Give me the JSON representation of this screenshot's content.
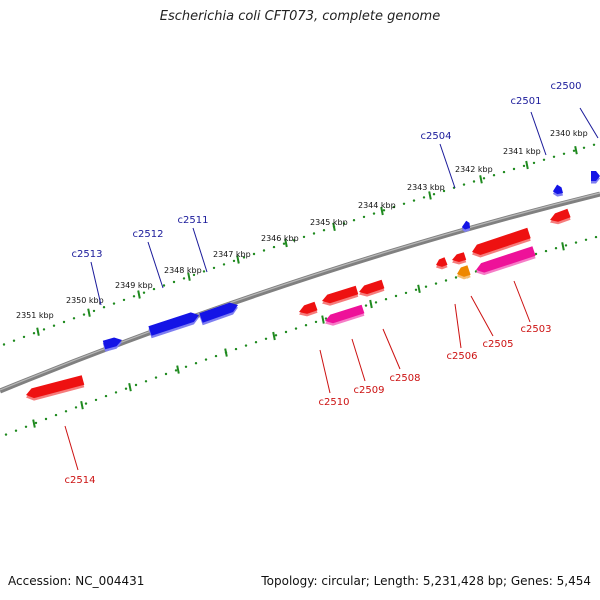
{
  "title": "Escherichia coli CFT073, complete genome",
  "footer": {
    "accession": "Accession: NC_004431",
    "summary": "Topology: circular; Length: 5,231,428 bp; Genes: 5,454"
  },
  "colors": {
    "backbone": "#808080",
    "ruler": "#1f8a1f",
    "forward_gene": "#1414e6",
    "reverse_gene": "#ee1111",
    "pink_gene": "#ee1199",
    "orange_gene": "#ee8800",
    "forward_label": "#1a1a9a",
    "reverse_label": "#cc1111"
  },
  "ruler_labels": [
    {
      "text": "2340 kbp",
      "kbp": 2340
    },
    {
      "text": "2341 kbp",
      "kbp": 2341
    },
    {
      "text": "2342 kbp",
      "kbp": 2342
    },
    {
      "text": "2343 kbp",
      "kbp": 2343
    },
    {
      "text": "2344 kbp",
      "kbp": 2344
    },
    {
      "text": "2345 kbp",
      "kbp": 2345
    },
    {
      "text": "2346 kbp",
      "kbp": 2346
    },
    {
      "text": "2347 kbp",
      "kbp": 2347
    },
    {
      "text": "2348 kbp",
      "kbp": 2348
    },
    {
      "text": "2349 kbp",
      "kbp": 2349
    },
    {
      "text": "2350 kbp",
      "kbp": 2350
    },
    {
      "text": "2351 kbp",
      "kbp": 2351
    }
  ],
  "forward_genes": [
    {
      "label": "c2500"
    },
    {
      "label": "c2501"
    },
    {
      "label": "c2504"
    },
    {
      "label": "c2511"
    },
    {
      "label": "c2512"
    },
    {
      "label": "c2513"
    }
  ],
  "reverse_genes": [
    {
      "label": "c2503"
    },
    {
      "label": "c2505"
    },
    {
      "label": "c2506"
    },
    {
      "label": "c2508"
    },
    {
      "label": "c2509"
    },
    {
      "label": "c2510"
    },
    {
      "label": "c2514"
    }
  ]
}
